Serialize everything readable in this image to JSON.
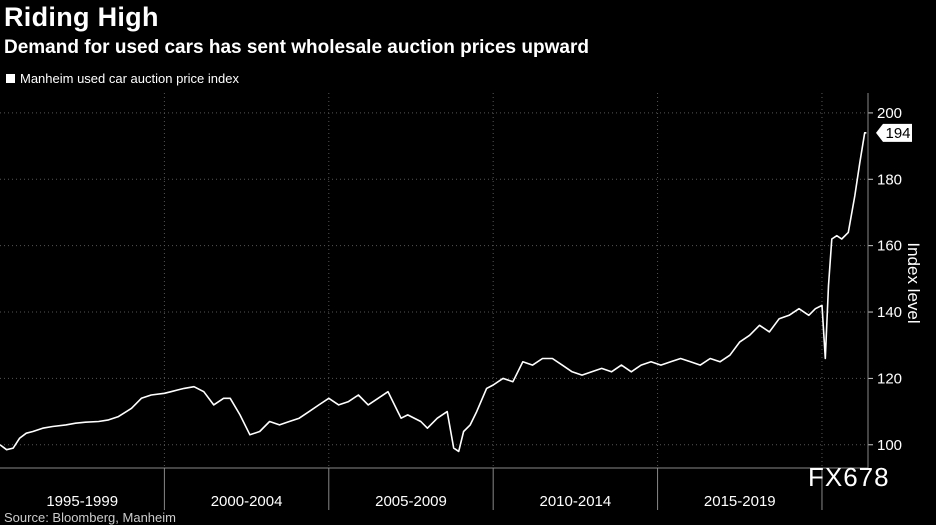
{
  "header": {
    "title": "Riding High",
    "subtitle": "Demand for used cars has sent wholesale auction prices upward"
  },
  "watermark": "FX678",
  "source": "Source: Bloomberg, Manheim",
  "chart_data": {
    "type": "line",
    "title": "Riding High",
    "subtitle": "Demand for used cars has sent wholesale auction prices upward",
    "ylabel": "Index level",
    "xlabel": "",
    "ylim": [
      93,
      206
    ],
    "xlim": [
      1995.0,
      2021.4
    ],
    "y_ticks": [
      100,
      120,
      140,
      160,
      180,
      200
    ],
    "x_periods": [
      {
        "label": "1995-1999",
        "start": 1995,
        "end": 2000
      },
      {
        "label": "2000-2004",
        "start": 2000,
        "end": 2005
      },
      {
        "label": "2005-2009",
        "start": 2005,
        "end": 2010
      },
      {
        "label": "2010-2014",
        "start": 2010,
        "end": 2015
      },
      {
        "label": "2015-2019",
        "start": 2015,
        "end": 2020
      }
    ],
    "grid": true,
    "legend_position": "top-left",
    "last_value_label": "194",
    "series": [
      {
        "name": "Manheim used car auction price index",
        "color": "#ffffff",
        "x": [
          1995.0,
          1995.2,
          1995.4,
          1995.6,
          1995.8,
          1996.0,
          1996.3,
          1996.6,
          1997.0,
          1997.3,
          1997.6,
          1998.0,
          1998.3,
          1998.6,
          1999.0,
          1999.3,
          1999.6,
          2000.0,
          2000.2,
          2000.4,
          2000.6,
          2000.9,
          2001.2,
          2001.5,
          2001.8,
          2002.0,
          2002.3,
          2002.6,
          2002.9,
          2003.2,
          2003.5,
          2003.8,
          2004.1,
          2004.4,
          2004.7,
          2005.0,
          2005.3,
          2005.6,
          2005.9,
          2006.2,
          2006.5,
          2006.8,
          2007.1,
          2007.2,
          2007.4,
          2007.8,
          2008.0,
          2008.3,
          2008.6,
          2008.8,
          2008.95,
          2009.1,
          2009.3,
          2009.5,
          2009.8,
          2010.0,
          2010.3,
          2010.6,
          2010.9,
          2011.2,
          2011.5,
          2011.8,
          2012.1,
          2012.4,
          2012.7,
          2013.0,
          2013.3,
          2013.6,
          2013.9,
          2014.2,
          2014.5,
          2014.8,
          2015.1,
          2015.4,
          2015.7,
          2016.0,
          2016.3,
          2016.6,
          2016.9,
          2017.2,
          2017.5,
          2017.8,
          2018.1,
          2018.4,
          2018.7,
          2019.0,
          2019.3,
          2019.6,
          2019.8,
          2020.0,
          2020.1,
          2020.2,
          2020.3,
          2020.45,
          2020.6,
          2020.8,
          2021.0,
          2021.15,
          2021.3,
          2021.35
        ],
        "values": [
          100,
          98.5,
          99,
          102,
          103.5,
          104,
          105,
          105.5,
          106,
          106.5,
          106.8,
          107,
          107.5,
          108.5,
          111,
          114,
          115,
          115.5,
          116,
          116.5,
          117,
          117.5,
          116,
          112,
          114,
          114,
          109,
          103,
          104,
          107,
          106,
          107,
          108,
          110,
          112,
          114,
          112,
          113,
          115,
          112,
          114,
          116,
          110,
          108,
          109,
          107,
          105,
          108,
          110,
          99,
          98,
          104,
          106,
          110,
          117,
          118,
          120,
          119,
          125,
          124,
          126,
          126,
          124,
          122,
          121,
          122,
          123,
          122,
          124,
          122,
          124,
          125,
          124,
          125,
          126,
          125,
          124,
          126,
          125,
          127,
          131,
          133,
          136,
          134,
          138,
          139,
          141,
          139,
          141,
          142,
          126,
          148,
          162,
          163,
          162,
          164,
          175,
          185,
          194,
          194
        ]
      }
    ]
  }
}
